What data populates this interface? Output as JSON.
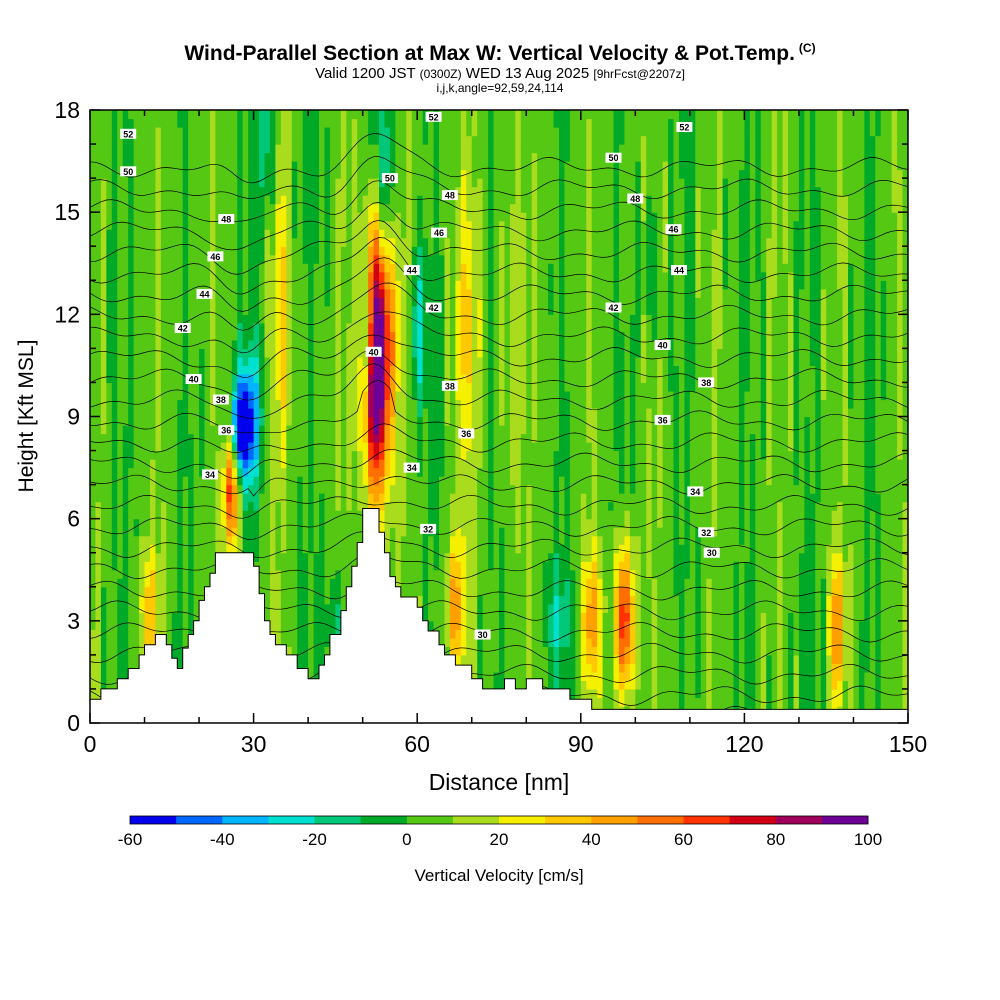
{
  "title": {
    "main": "Wind-Parallel Section at Max W: Vertical Velocity & Pot.Temp.",
    "mark": "(C)",
    "valid_prefix": "Valid 1200 JST",
    "valid_utc": "(0300Z)",
    "valid_date": "WED 13 Aug 2025",
    "forecast": "[9hrFcst@2207z]",
    "params": "i,j,k,angle=92,59,24,114"
  },
  "chart_data": {
    "type": "heatmap",
    "xlabel": "Distance [nm]",
    "ylabel": "Height [Kft MSL]",
    "xlim": [
      0,
      150
    ],
    "ylim": [
      0,
      18
    ],
    "x_ticks": [
      0,
      30,
      60,
      90,
      120,
      150
    ],
    "y_ticks": [
      0,
      3,
      6,
      9,
      12,
      15,
      18
    ],
    "colorbar": {
      "label": "Vertical Velocity [cm/s]",
      "tick_labels": [
        "-60",
        "-40",
        "-20",
        "0",
        "20",
        "40",
        "60",
        "80",
        "100"
      ],
      "levels": [
        -60,
        -50,
        -40,
        -30,
        -20,
        -10,
        0,
        10,
        20,
        30,
        40,
        50,
        60,
        70,
        80,
        90,
        100
      ],
      "colors": [
        "#0000ee",
        "#0068ff",
        "#00b4ff",
        "#00e0d0",
        "#00c878",
        "#00aa28",
        "#55c814",
        "#aadc1e",
        "#f5f000",
        "#ffc800",
        "#ffa000",
        "#ff6e00",
        "#ff3200",
        "#d20014",
        "#a0005a",
        "#6e0096"
      ]
    },
    "terrain": [
      [
        0,
        0.7
      ],
      [
        2,
        0.7
      ],
      [
        2,
        1.0
      ],
      [
        5,
        1.0
      ],
      [
        5,
        1.3
      ],
      [
        7,
        1.3
      ],
      [
        7,
        1.6
      ],
      [
        9,
        1.6
      ],
      [
        9,
        2.0
      ],
      [
        10,
        2.0
      ],
      [
        10,
        2.3
      ],
      [
        12,
        2.3
      ],
      [
        12,
        2.6
      ],
      [
        14,
        2.6
      ],
      [
        14,
        2.3
      ],
      [
        15,
        2.3
      ],
      [
        15,
        1.9
      ],
      [
        16,
        1.9
      ],
      [
        16,
        1.6
      ],
      [
        17,
        1.6
      ],
      [
        17,
        2.2
      ],
      [
        18,
        2.2
      ],
      [
        18,
        2.6
      ],
      [
        19,
        2.6
      ],
      [
        19,
        3.0
      ],
      [
        20,
        3.0
      ],
      [
        20,
        3.6
      ],
      [
        21,
        3.6
      ],
      [
        21,
        4.0
      ],
      [
        22,
        4.0
      ],
      [
        22,
        4.4
      ],
      [
        23,
        4.4
      ],
      [
        23,
        5.0
      ],
      [
        30,
        5.0
      ],
      [
        30,
        4.6
      ],
      [
        31,
        4.6
      ],
      [
        31,
        3.8
      ],
      [
        32,
        3.8
      ],
      [
        32,
        3.0
      ],
      [
        33,
        3.0
      ],
      [
        33,
        2.6
      ],
      [
        34,
        2.6
      ],
      [
        34,
        2.3
      ],
      [
        36,
        2.3
      ],
      [
        36,
        2.0
      ],
      [
        38,
        2.0
      ],
      [
        38,
        1.6
      ],
      [
        40,
        1.6
      ],
      [
        40,
        1.3
      ],
      [
        42,
        1.3
      ],
      [
        42,
        1.7
      ],
      [
        43,
        1.7
      ],
      [
        43,
        2.0
      ],
      [
        44,
        2.0
      ],
      [
        44,
        2.6
      ],
      [
        46,
        2.6
      ],
      [
        46,
        3.3
      ],
      [
        47,
        3.3
      ],
      [
        47,
        4.0
      ],
      [
        48,
        4.0
      ],
      [
        48,
        4.6
      ],
      [
        49,
        4.6
      ],
      [
        49,
        5.3
      ],
      [
        50,
        5.3
      ],
      [
        50,
        6.3
      ],
      [
        53,
        6.3
      ],
      [
        53,
        5.6
      ],
      [
        54,
        5.6
      ],
      [
        54,
        5.0
      ],
      [
        55,
        5.0
      ],
      [
        55,
        4.3
      ],
      [
        56,
        4.3
      ],
      [
        56,
        4.0
      ],
      [
        57,
        4.0
      ],
      [
        57,
        3.7
      ],
      [
        60,
        3.7
      ],
      [
        60,
        3.4
      ],
      [
        61,
        3.4
      ],
      [
        61,
        3.0
      ],
      [
        62,
        3.0
      ],
      [
        62,
        2.7
      ],
      [
        64,
        2.7
      ],
      [
        64,
        2.3
      ],
      [
        65,
        2.3
      ],
      [
        65,
        2.0
      ],
      [
        67,
        2.0
      ],
      [
        67,
        1.7
      ],
      [
        70,
        1.7
      ],
      [
        70,
        1.3
      ],
      [
        72,
        1.3
      ],
      [
        72,
        1.0
      ],
      [
        76,
        1.0
      ],
      [
        76,
        1.3
      ],
      [
        78,
        1.3
      ],
      [
        78,
        1.0
      ],
      [
        80,
        1.0
      ],
      [
        80,
        1.3
      ],
      [
        83,
        1.3
      ],
      [
        83,
        1.0
      ],
      [
        88,
        1.0
      ],
      [
        88,
        0.7
      ],
      [
        92,
        0.7
      ],
      [
        92,
        0.4
      ],
      [
        150,
        0.4
      ]
    ],
    "theta_contour_labels": [
      {
        "x": 7,
        "y": 17.3,
        "label": "52"
      },
      {
        "x": 63,
        "y": 17.8,
        "label": "52"
      },
      {
        "x": 109,
        "y": 17.5,
        "label": "52"
      },
      {
        "x": 7,
        "y": 16.2,
        "label": "50"
      },
      {
        "x": 55,
        "y": 16.0,
        "label": "50"
      },
      {
        "x": 96,
        "y": 16.6,
        "label": "50"
      },
      {
        "x": 25,
        "y": 14.8,
        "label": "48"
      },
      {
        "x": 66,
        "y": 15.5,
        "label": "48"
      },
      {
        "x": 100,
        "y": 15.4,
        "label": "48"
      },
      {
        "x": 23,
        "y": 13.7,
        "label": "46"
      },
      {
        "x": 64,
        "y": 14.4,
        "label": "46"
      },
      {
        "x": 107,
        "y": 14.5,
        "label": "46"
      },
      {
        "x": 21,
        "y": 12.6,
        "label": "44"
      },
      {
        "x": 59,
        "y": 13.3,
        "label": "44"
      },
      {
        "x": 108,
        "y": 13.3,
        "label": "44"
      },
      {
        "x": 17,
        "y": 11.6,
        "label": "42"
      },
      {
        "x": 63,
        "y": 12.2,
        "label": "42"
      },
      {
        "x": 96,
        "y": 12.2,
        "label": "42"
      },
      {
        "x": 19,
        "y": 10.1,
        "label": "40"
      },
      {
        "x": 52,
        "y": 10.9,
        "label": "40"
      },
      {
        "x": 105,
        "y": 11.1,
        "label": "40"
      },
      {
        "x": 24,
        "y": 9.5,
        "label": "38"
      },
      {
        "x": 66,
        "y": 9.9,
        "label": "38"
      },
      {
        "x": 113,
        "y": 10.0,
        "label": "38"
      },
      {
        "x": 25,
        "y": 8.6,
        "label": "36"
      },
      {
        "x": 69,
        "y": 8.5,
        "label": "36"
      },
      {
        "x": 105,
        "y": 8.9,
        "label": "36"
      },
      {
        "x": 22,
        "y": 7.3,
        "label": "34"
      },
      {
        "x": 59,
        "y": 7.5,
        "label": "34"
      },
      {
        "x": 111,
        "y": 6.8,
        "label": "34"
      },
      {
        "x": 62,
        "y": 5.7,
        "label": "32"
      },
      {
        "x": 113,
        "y": 5.6,
        "label": "32"
      },
      {
        "x": 114,
        "y": 5.0,
        "label": "30"
      },
      {
        "x": 72,
        "y": 2.6,
        "label": "30"
      }
    ],
    "velocity_features": [
      {
        "x": 52.5,
        "y": 10.5,
        "sx": 1.5,
        "sy": 2.8,
        "w": 100
      },
      {
        "x": 53.5,
        "y": 11.5,
        "sx": 3.2,
        "sy": 2.5,
        "w": 30
      },
      {
        "x": 26.0,
        "y": 6.9,
        "sx": 1.0,
        "sy": 1.3,
        "w": 65
      },
      {
        "x": 98.0,
        "y": 3.0,
        "sx": 1.2,
        "sy": 1.6,
        "w": 70
      },
      {
        "x": 92.0,
        "y": 3.0,
        "sx": 1.2,
        "sy": 1.4,
        "w": 42
      },
      {
        "x": 137.0,
        "y": 2.8,
        "sx": 1.0,
        "sy": 1.4,
        "w": 45
      },
      {
        "x": 67.0,
        "y": 3.4,
        "sx": 1.3,
        "sy": 1.5,
        "w": 38
      },
      {
        "x": 11.0,
        "y": 3.3,
        "sx": 1.3,
        "sy": 1.2,
        "w": 30
      },
      {
        "x": 35.0,
        "y": 12.0,
        "sx": 1.3,
        "sy": 3.0,
        "w": 24
      },
      {
        "x": 69.0,
        "y": 11.5,
        "sx": 1.8,
        "sy": 3.0,
        "w": 22
      },
      {
        "x": 77.0,
        "y": 11.0,
        "sx": 1.4,
        "sy": 4.0,
        "w": 14
      },
      {
        "x": 27.5,
        "y": 8.6,
        "sx": 1.5,
        "sy": 1.0,
        "w": -60
      },
      {
        "x": 29.5,
        "y": 9.0,
        "sx": 1.6,
        "sy": 1.6,
        "w": -32
      },
      {
        "x": 51.0,
        "y": 11.5,
        "sx": 1.0,
        "sy": 1.4,
        "w": -45
      },
      {
        "x": 54.0,
        "y": 16.0,
        "sx": 1.4,
        "sy": 2.0,
        "w": -28
      },
      {
        "x": 60.0,
        "y": 11.5,
        "sx": 1.4,
        "sy": 1.8,
        "w": -28
      },
      {
        "x": 32.5,
        "y": 17.0,
        "sx": 1.2,
        "sy": 1.6,
        "w": -22
      },
      {
        "x": 86.0,
        "y": 3.0,
        "sx": 2.0,
        "sy": 1.2,
        "w": -18
      },
      {
        "x": 45.0,
        "y": 3.0,
        "sx": 1.2,
        "sy": 1.2,
        "w": -16
      },
      {
        "x": 103.0,
        "y": 13.5,
        "sx": 1.2,
        "sy": 1.5,
        "w": -14
      }
    ]
  }
}
